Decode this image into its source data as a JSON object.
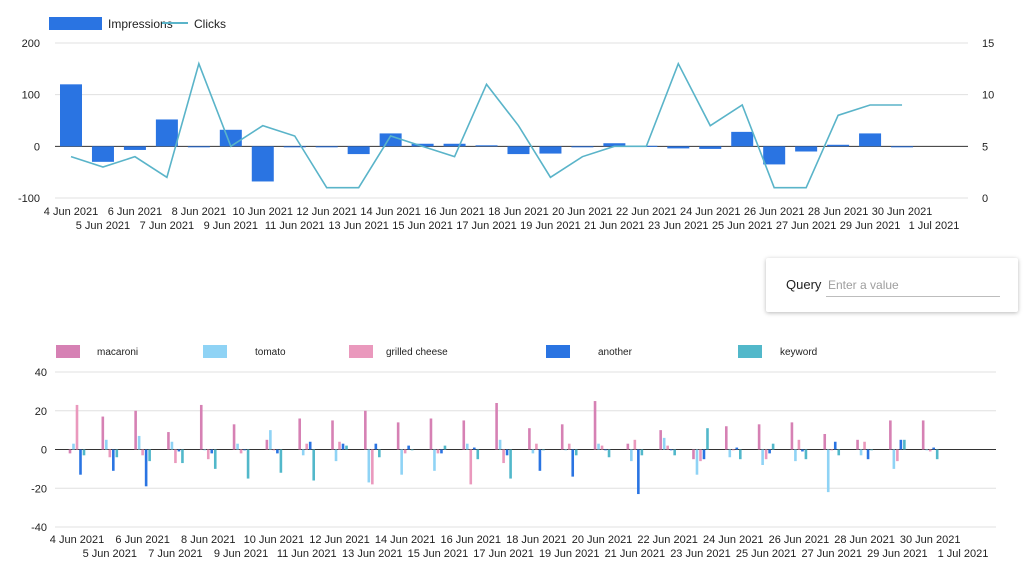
{
  "query": {
    "label": "Query",
    "placeholder": "Enter a value"
  },
  "chart_data": [
    {
      "type": "bar+line",
      "categories": [
        "4 Jun 2021",
        "5 Jun 2021",
        "6 Jun 2021",
        "7 Jun 2021",
        "8 Jun 2021",
        "9 Jun 2021",
        "10 Jun 2021",
        "11 Jun 2021",
        "12 Jun 2021",
        "13 Jun 2021",
        "14 Jun 2021",
        "15 Jun 2021",
        "16 Jun 2021",
        "17 Jun 2021",
        "18 Jun 2021",
        "19 Jun 2021",
        "20 Jun 2021",
        "21 Jun 2021",
        "22 Jun 2021",
        "23 Jun 2021",
        "24 Jun 2021",
        "25 Jun 2021",
        "26 Jun 2021",
        "27 Jun 2021",
        "28 Jun 2021",
        "29 Jun 2021",
        "30 Jun 2021",
        "1 Jul 2021"
      ],
      "series": [
        {
          "name": "Impressions",
          "type": "bar",
          "axis": "left",
          "color": "#2a74e2",
          "values": [
            120,
            -30,
            -7,
            52,
            0,
            32,
            -68,
            0,
            -1,
            -15,
            25,
            5,
            5,
            2,
            -15,
            -14,
            0,
            6,
            1,
            -4,
            -5,
            28,
            -35,
            -10,
            3,
            25,
            0,
            null
          ]
        },
        {
          "name": "Clicks",
          "type": "line",
          "axis": "right",
          "color": "#5ab4c9",
          "values": [
            4,
            3,
            4,
            2,
            13,
            5,
            7,
            6,
            1,
            1,
            6,
            5,
            4,
            11,
            7,
            2,
            4,
            5,
            5,
            13,
            7,
            9,
            1,
            1,
            8,
            9,
            9,
            null
          ]
        }
      ],
      "y_left": {
        "ticks": [
          -100,
          0,
          100,
          200
        ],
        "range": [
          -100,
          200
        ]
      },
      "y_right": {
        "ticks": [
          0,
          5,
          10,
          15
        ],
        "range": [
          0,
          15
        ]
      },
      "legend": "top-left",
      "grid": true
    },
    {
      "type": "bar",
      "categories": [
        "4 Jun 2021",
        "5 Jun 2021",
        "6 Jun 2021",
        "7 Jun 2021",
        "8 Jun 2021",
        "9 Jun 2021",
        "10 Jun 2021",
        "11 Jun 2021",
        "12 Jun 2021",
        "13 Jun 2021",
        "14 Jun 2021",
        "15 Jun 2021",
        "16 Jun 2021",
        "17 Jun 2021",
        "18 Jun 2021",
        "19 Jun 2021",
        "20 Jun 2021",
        "21 Jun 2021",
        "22 Jun 2021",
        "23 Jun 2021",
        "24 Jun 2021",
        "25 Jun 2021",
        "26 Jun 2021",
        "27 Jun 2021",
        "28 Jun 2021",
        "29 Jun 2021",
        "30 Jun 2021",
        "1 Jul 2021"
      ],
      "series": [
        {
          "name": "macaroni",
          "color": "#d681b4",
          "values": [
            -2,
            17,
            20,
            9,
            23,
            13,
            5,
            16,
            15,
            20,
            14,
            16,
            15,
            24,
            11,
            13,
            25,
            3,
            10,
            -5,
            12,
            13,
            14,
            8,
            5,
            15,
            15,
            null
          ]
        },
        {
          "name": "tomato",
          "color": "#8fd3f5",
          "values": [
            3,
            5,
            7,
            4,
            0,
            3,
            10,
            -3,
            -6,
            -17,
            -13,
            -11,
            3,
            5,
            -2,
            0,
            3,
            -6,
            6,
            -13,
            -4,
            -8,
            -6,
            -22,
            -3,
            -10,
            0,
            null
          ]
        },
        {
          "name": "grilled cheese",
          "color": "#ea99bd",
          "values": [
            23,
            -4,
            -3,
            -7,
            -5,
            -2,
            0,
            3,
            4,
            -18,
            -2,
            -2,
            -18,
            -7,
            3,
            3,
            2,
            5,
            2,
            -6,
            0,
            -5,
            5,
            0,
            4,
            -6,
            -1,
            null
          ]
        },
        {
          "name": "another",
          "color": "#2a74e2",
          "values": [
            -13,
            -11,
            -19,
            -1,
            -2,
            0,
            -2,
            4,
            3,
            3,
            2,
            -2,
            1,
            -3,
            -11,
            -14,
            0,
            -23,
            0,
            -5,
            1,
            -2,
            -1,
            4,
            -5,
            5,
            1,
            null
          ]
        },
        {
          "name": "keyword",
          "color": "#52b8ca",
          "values": [
            -3,
            -4,
            -6,
            -7,
            -10,
            -15,
            -12,
            -16,
            2,
            -4,
            0,
            2,
            -5,
            -15,
            0,
            -3,
            -4,
            -3,
            -3,
            11,
            -5,
            3,
            -5,
            -3,
            0,
            5,
            -5,
            null
          ]
        }
      ],
      "y": {
        "ticks": [
          -40,
          -20,
          0,
          20,
          40
        ],
        "range": [
          -40,
          40
        ]
      },
      "legend": "top",
      "grid": true
    }
  ]
}
